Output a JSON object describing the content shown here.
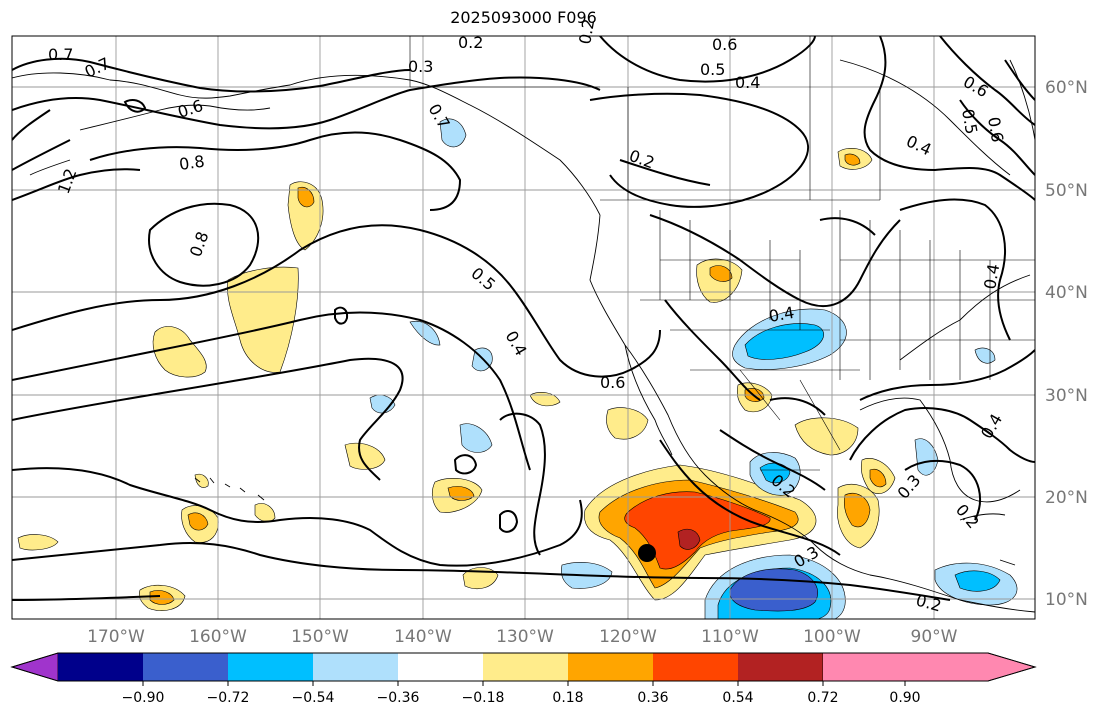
{
  "title": "2025093000 F096",
  "lon_labels": [
    "170°W",
    "160°W",
    "150°W",
    "140°W",
    "130°W",
    "120°W",
    "110°W",
    "100°W",
    "90°W"
  ],
  "lat_labels": [
    "60°N",
    "50°N",
    "40°N",
    "30°N",
    "20°N",
    "10°N"
  ],
  "colorbar": {
    "colors": [
      "#a034cc",
      "#00008b",
      "#3a5fcd",
      "#00bfff",
      "#afe0fc",
      "#ffffff",
      "#ffec8b",
      "#ffa500",
      "#ff4500",
      "#b22222",
      "#ff88b0"
    ],
    "ticks": [
      "−0.90",
      "−0.72",
      "−0.54",
      "−0.36",
      "−0.18",
      "0.18",
      "0.36",
      "0.54",
      "0.72",
      "0.90"
    ]
  },
  "contour_labels": [
    "0.7",
    "0.7",
    "0.6",
    "0.8",
    "1.2",
    "0.8",
    "0.3",
    "0.2",
    "0.7",
    "0.6",
    "0.5",
    "0.4",
    "0.6",
    "0.5",
    "0.6",
    "0.4",
    "0.2",
    "0.5",
    "0.4",
    "0.6",
    "0.4",
    "0.3",
    "0.2",
    "0.3",
    "0.2",
    "0.4",
    "0.2",
    "0.4",
    "0.2"
  ],
  "colors": {
    "contour": "#000000",
    "grid": "#9a9a9a",
    "coast": "#000000",
    "marker": "#000000"
  }
}
